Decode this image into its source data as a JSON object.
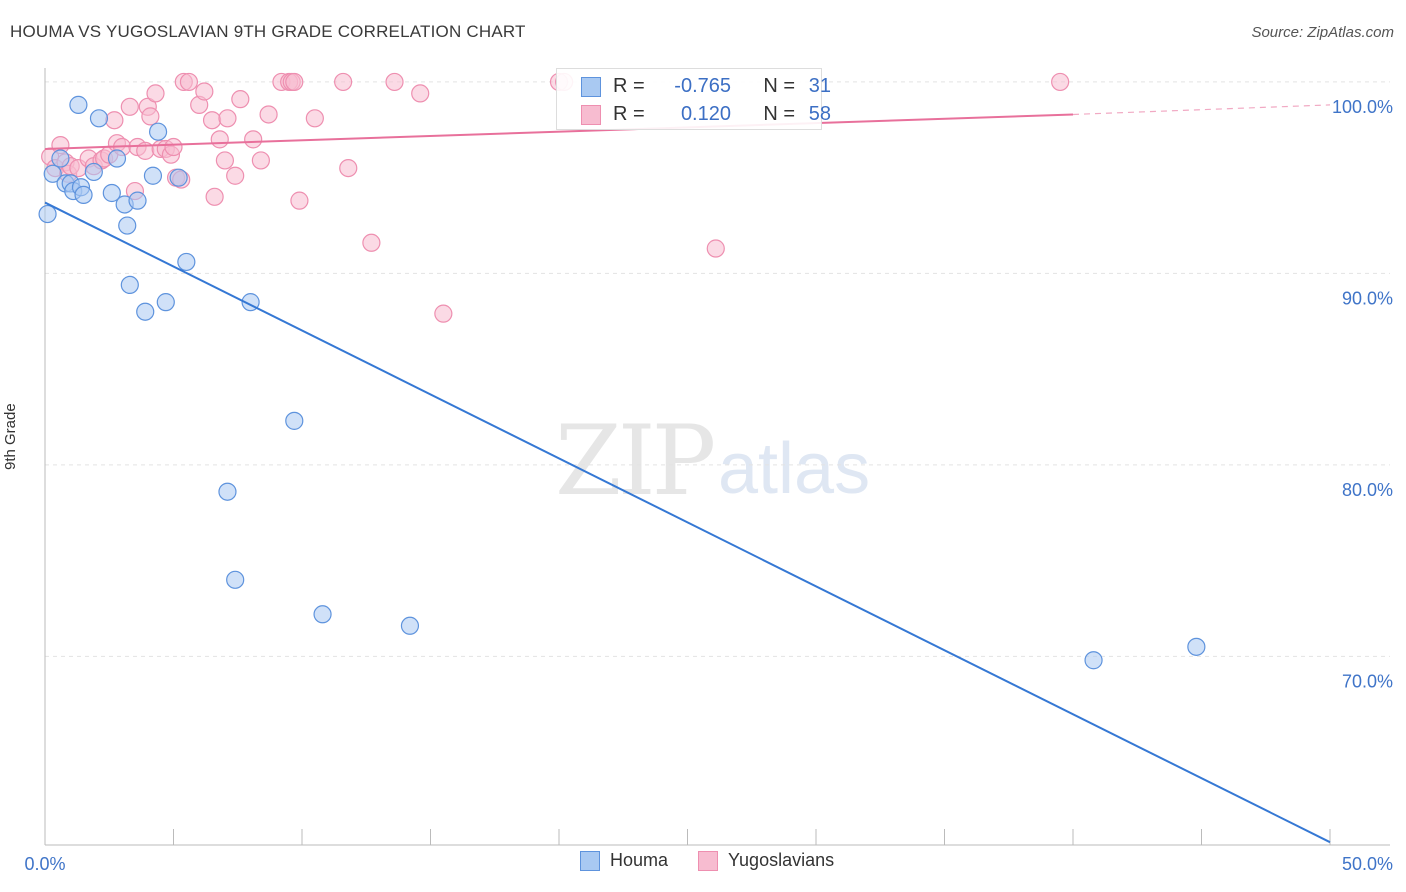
{
  "title": "HOUMA VS YUGOSLAVIAN 9TH GRADE CORRELATION CHART",
  "source": "Source: ZipAtlas.com",
  "watermark": {
    "zip": "ZIP",
    "atlas": "atlas"
  },
  "legend_box": {
    "houma": {
      "r_label": "R =",
      "r_value": "-0.765",
      "n_label": "N =",
      "n_value": "31"
    },
    "yugo": {
      "r_label": "R =",
      "r_value": "0.120",
      "n_label": "N =",
      "n_value": "58"
    }
  },
  "colors": {
    "houma_fill": "#a9c9f2",
    "houma_stroke": "#5e93dd",
    "houma_line": "#3578d4",
    "yugo_fill": "#f7bcd0",
    "yugo_stroke": "#ee8fb0",
    "yugo_line": "#e8709b",
    "axis_text": "#3f74c8",
    "grid": "#e3e3e3"
  },
  "chart_data": {
    "type": "scatter",
    "xlabel": "",
    "ylabel": "9th Grade",
    "xlim": [
      0,
      50
    ],
    "ylim": [
      61,
      101.5
    ],
    "x_tick_labels": [
      "0.0%",
      "50.0%"
    ],
    "y_ticks": [
      70,
      80,
      90,
      100
    ],
    "y_tick_labels": [
      "70.0%",
      "80.0%",
      "90.0%",
      "100.0%"
    ],
    "grid": "horizontal dashed",
    "legend": "bottom-center",
    "series": [
      {
        "name": "Houma",
        "points": [
          [
            0.1,
            93.1
          ],
          [
            0.3,
            95.2
          ],
          [
            0.6,
            96.0
          ],
          [
            0.8,
            94.7
          ],
          [
            1.0,
            94.7
          ],
          [
            1.1,
            94.3
          ],
          [
            1.4,
            94.5
          ],
          [
            1.5,
            94.1
          ],
          [
            1.9,
            95.3
          ],
          [
            1.3,
            98.8
          ],
          [
            2.1,
            98.1
          ],
          [
            2.6,
            94.2
          ],
          [
            2.8,
            96.0
          ],
          [
            3.1,
            93.6
          ],
          [
            3.2,
            92.5
          ],
          [
            3.3,
            89.4
          ],
          [
            3.6,
            93.8
          ],
          [
            3.9,
            88.0
          ],
          [
            4.2,
            95.1
          ],
          [
            4.4,
            97.4
          ],
          [
            4.7,
            88.5
          ],
          [
            5.2,
            95.0
          ],
          [
            5.5,
            90.6
          ],
          [
            7.1,
            78.6
          ],
          [
            7.4,
            74.0
          ],
          [
            8.0,
            88.5
          ],
          [
            9.7,
            82.3
          ],
          [
            10.8,
            72.2
          ],
          [
            14.2,
            71.6
          ],
          [
            40.8,
            69.8
          ],
          [
            44.8,
            70.5
          ]
        ],
        "trend": {
          "x": [
            0,
            50
          ],
          "y": [
            93.7,
            60.3
          ]
        }
      },
      {
        "name": "Yugoslavians",
        "points": [
          [
            0.2,
            96.1
          ],
          [
            0.4,
            95.5
          ],
          [
            0.6,
            96.7
          ],
          [
            0.8,
            95.8
          ],
          [
            0.9,
            95.2
          ],
          [
            1.0,
            95.6
          ],
          [
            1.3,
            95.5
          ],
          [
            1.7,
            96.0
          ],
          [
            1.9,
            95.6
          ],
          [
            2.2,
            95.9
          ],
          [
            2.3,
            96.0
          ],
          [
            2.5,
            96.2
          ],
          [
            2.7,
            98.0
          ],
          [
            2.8,
            96.8
          ],
          [
            3.0,
            96.6
          ],
          [
            3.3,
            98.7
          ],
          [
            3.5,
            94.3
          ],
          [
            3.6,
            96.6
          ],
          [
            3.9,
            96.4
          ],
          [
            4.0,
            98.7
          ],
          [
            4.1,
            98.2
          ],
          [
            4.3,
            99.4
          ],
          [
            4.5,
            96.5
          ],
          [
            4.7,
            96.5
          ],
          [
            4.9,
            96.2
          ],
          [
            5.0,
            96.6
          ],
          [
            5.1,
            95.0
          ],
          [
            5.3,
            94.9
          ],
          [
            5.4,
            100.0
          ],
          [
            5.6,
            100.0
          ],
          [
            6.0,
            98.8
          ],
          [
            6.2,
            99.5
          ],
          [
            6.5,
            98.0
          ],
          [
            6.6,
            94.0
          ],
          [
            6.8,
            97.0
          ],
          [
            7.0,
            95.9
          ],
          [
            7.1,
            98.1
          ],
          [
            7.4,
            95.1
          ],
          [
            7.6,
            99.1
          ],
          [
            8.1,
            97.0
          ],
          [
            8.4,
            95.9
          ],
          [
            8.7,
            98.3
          ],
          [
            9.2,
            100.0
          ],
          [
            9.5,
            100.0
          ],
          [
            9.6,
            100.0
          ],
          [
            9.7,
            100.0
          ],
          [
            9.9,
            93.8
          ],
          [
            10.5,
            98.1
          ],
          [
            11.6,
            100.0
          ],
          [
            11.8,
            95.5
          ],
          [
            12.7,
            91.6
          ],
          [
            13.6,
            100.0
          ],
          [
            14.6,
            99.4
          ],
          [
            15.5,
            87.9
          ],
          [
            20.0,
            100.0
          ],
          [
            20.2,
            100.0
          ],
          [
            26.1,
            91.3
          ],
          [
            39.5,
            100.0
          ]
        ],
        "trend": {
          "x": [
            0,
            40
          ],
          "y": [
            96.5,
            98.3
          ]
        },
        "trend_dashed": {
          "x": [
            40,
            50
          ],
          "y": [
            98.3,
            98.8
          ]
        }
      }
    ]
  }
}
